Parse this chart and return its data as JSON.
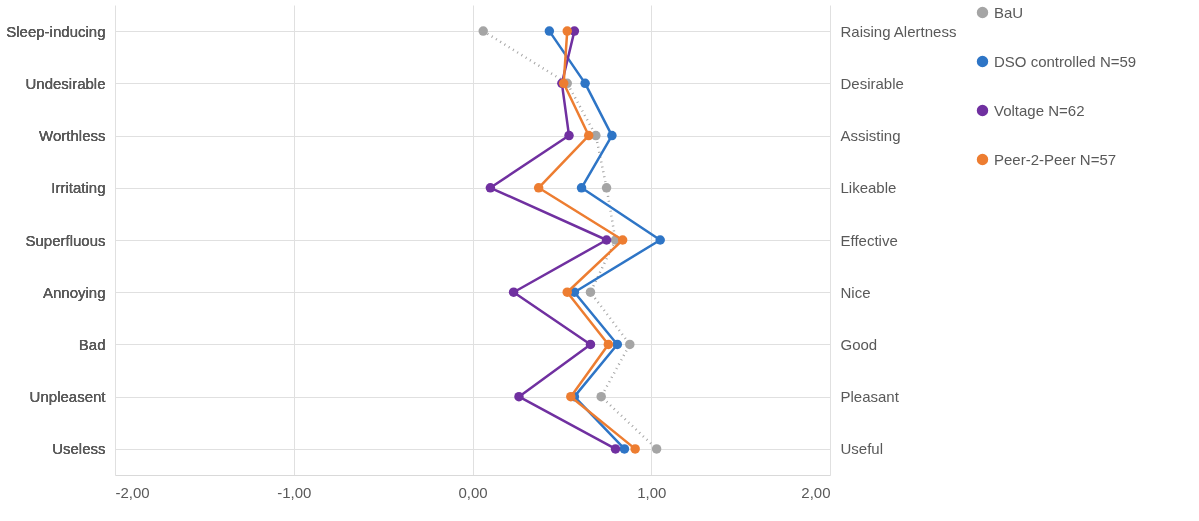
{
  "chart_data": {
    "type": "line",
    "categories": [
      "Sleep-inducing",
      "Undesirable",
      "Worthless",
      "Irritating",
      "Superfluous",
      "Annoying",
      "Bad",
      "Unpleasent",
      "Useless"
    ],
    "y2_categories": [
      "Raising Alertness",
      "Desirable",
      "Assisting",
      "Likeable",
      "Effective",
      "Nice",
      "Good",
      "Pleasant",
      "Useful"
    ],
    "orientation": "horizontal",
    "series": [
      {
        "name": "BaU",
        "color": "#a5a5a5",
        "line_style": "dotted",
        "values": [
          0.06,
          0.53,
          0.69,
          0.75,
          0.8,
          0.66,
          0.88,
          0.72,
          1.03
        ]
      },
      {
        "name": "DSO controlled N=59",
        "color": "#2e75c6",
        "values": [
          0.43,
          0.63,
          0.78,
          0.61,
          1.05,
          0.57,
          0.81,
          0.57,
          0.85
        ]
      },
      {
        "name": "Voltage N=62",
        "color": "#7030a0",
        "values": [
          0.57,
          0.5,
          0.54,
          0.1,
          0.75,
          0.23,
          0.66,
          0.26,
          0.8
        ]
      },
      {
        "name": "Peer-2-Peer N=57",
        "color": "#ed7d31",
        "values": [
          0.53,
          0.51,
          0.65,
          0.37,
          0.84,
          0.53,
          0.76,
          0.55,
          0.91
        ]
      }
    ],
    "xlim": [
      -2,
      2
    ],
    "xticks": [
      {
        "value": -2,
        "label": "-2,00"
      },
      {
        "value": -1,
        "label": "-1,00"
      },
      {
        "value": 0,
        "label": "0,00"
      },
      {
        "value": 1,
        "label": "1,00"
      },
      {
        "value": 2,
        "label": "2,00"
      }
    ],
    "grid": true,
    "legend": "right",
    "marker": "circle",
    "line_style": "solid"
  }
}
